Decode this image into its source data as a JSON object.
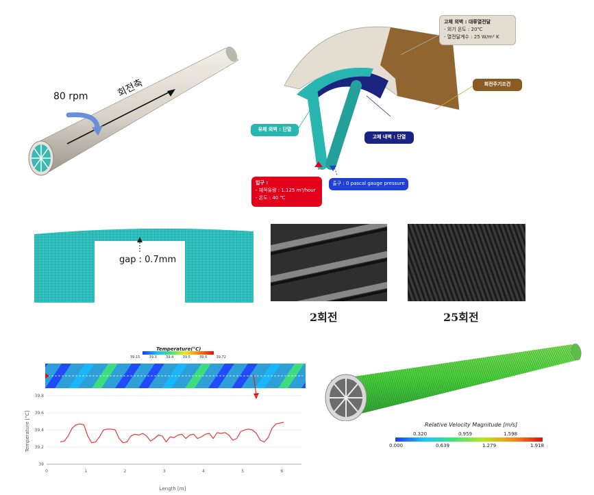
{
  "panel_rotation": {
    "rpm_label": "80 rpm",
    "axis_label": "회전축"
  },
  "panel_bc": {
    "solid_outer": {
      "title": "고체 외벽 : 대류열전달",
      "line1": "- 외기 온도 : 20℃",
      "line2": "- 열전달계수 : 25 W/m² K"
    },
    "periodic": "회전주기조건",
    "fluid_wall": "유체 외벽 : 단열",
    "solid_inner": "고체 내벽 : 단열",
    "inlet": {
      "title": "입구 :",
      "line1": "- 체적유량 : 1.125 m³/hour",
      "line2": "- 온도 : 40 ℃"
    },
    "outlet": "출구 : 0 pascal gauge pressure",
    "colors": {
      "teal": "#2ab6b0",
      "navy": "#1a237e",
      "brown": "#8a5a22",
      "red": "#e3001b",
      "blue": "#1f3fd6",
      "beige": "#e4ddd2"
    }
  },
  "panel_mesh": {
    "gap_label": "gap : 0.7mm"
  },
  "panel_turns": {
    "caption_2": "2회전",
    "caption_25": "25회전"
  },
  "temperature_colorbar": {
    "title": "Temperature(°C)",
    "ticks": [
      "39.15",
      "39.3",
      "39.4",
      "39.5",
      "39.6",
      "39.72"
    ]
  },
  "chart_data": {
    "type": "line",
    "xlabel": "Length [m]",
    "ylabel": "Temperature [°C]",
    "xlim": [
      0,
      6.5
    ],
    "ylim": [
      39,
      39.8
    ],
    "xticks": [
      0,
      1,
      2,
      3,
      4,
      5,
      6
    ],
    "yticks": [
      39,
      39.2,
      39.4,
      39.6,
      39.8
    ],
    "ytick_labels": [
      "39",
      "39.2",
      "39.4",
      "39.6",
      "39.8"
    ],
    "grid": true,
    "series": [
      {
        "color": "#e53935",
        "x": [
          0.35,
          0.45,
          0.55,
          0.65,
          0.75,
          0.85,
          0.95,
          1.05,
          1.15,
          1.25,
          1.35,
          1.45,
          1.55,
          1.65,
          1.75,
          1.85,
          1.95,
          2.05,
          2.15,
          2.25,
          2.35,
          2.45,
          2.55,
          2.65,
          2.75,
          2.85,
          2.95,
          3.05,
          3.15,
          3.25,
          3.35,
          3.45,
          3.55,
          3.65,
          3.75,
          3.85,
          3.95,
          4.05,
          4.15,
          4.25,
          4.35,
          4.45,
          4.55,
          4.65,
          4.75,
          4.85,
          4.95,
          5.05,
          5.15,
          5.25,
          5.35,
          5.45,
          5.55,
          5.65,
          5.75,
          5.85,
          5.95,
          6.05
        ],
        "y": [
          39.26,
          39.27,
          39.33,
          39.42,
          39.46,
          39.47,
          39.46,
          39.33,
          39.25,
          39.26,
          39.32,
          39.4,
          39.41,
          39.41,
          39.4,
          39.3,
          39.25,
          39.26,
          39.33,
          39.35,
          39.34,
          39.36,
          39.33,
          39.27,
          39.3,
          39.34,
          39.33,
          39.26,
          39.32,
          39.31,
          39.34,
          39.35,
          39.3,
          39.34,
          39.35,
          39.3,
          39.32,
          39.35,
          39.36,
          39.3,
          39.37,
          39.36,
          39.37,
          39.34,
          39.28,
          39.3,
          39.38,
          39.4,
          39.41,
          39.4,
          39.36,
          39.28,
          39.26,
          39.31,
          39.42,
          39.47,
          39.48,
          39.49
        ]
      }
    ]
  },
  "velocity_colorbar": {
    "title": "Relative Velocity Magnitude [m/s]",
    "ticks_top": [
      "0.320",
      "0.959",
      "1.598"
    ],
    "ticks_bottom": [
      "0.000",
      "0.639",
      "1.279",
      "1.918"
    ]
  }
}
